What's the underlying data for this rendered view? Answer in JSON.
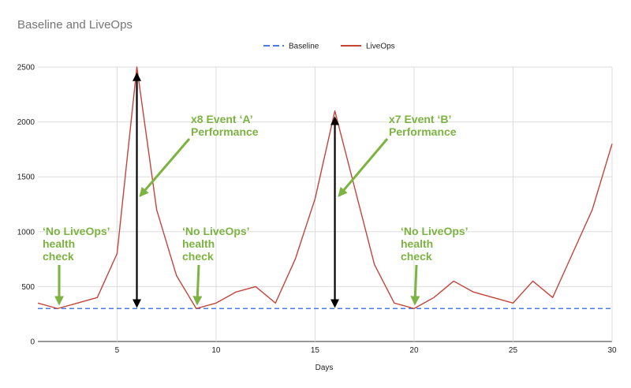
{
  "chart_data": {
    "type": "line",
    "title": "Baseline and LiveOps",
    "xlabel": "Days",
    "ylabel": "",
    "xlim": [
      1,
      30
    ],
    "ylim": [
      0,
      2500
    ],
    "x_ticks": [
      5,
      10,
      15,
      20,
      25,
      30
    ],
    "y_ticks": [
      0,
      500,
      1000,
      1500,
      2000,
      2500
    ],
    "grid": true,
    "legend_position": "top",
    "series": [
      {
        "name": "Baseline",
        "style": "dashed",
        "color": "#4a7de0",
        "x": [
          1,
          30
        ],
        "values": [
          300,
          300
        ]
      },
      {
        "name": "LiveOps",
        "style": "solid",
        "color": "#c5443a",
        "x": [
          1,
          2,
          3,
          4,
          5,
          6,
          7,
          8,
          9,
          10,
          11,
          12,
          13,
          14,
          15,
          16,
          17,
          18,
          19,
          20,
          21,
          22,
          23,
          24,
          25,
          26,
          27,
          28,
          29,
          30
        ],
        "values": [
          350,
          300,
          350,
          400,
          800,
          2500,
          1200,
          600,
          300,
          350,
          450,
          500,
          350,
          750,
          1300,
          2100,
          1400,
          700,
          350,
          300,
          400,
          550,
          450,
          400,
          350,
          550,
          400,
          800,
          1200,
          1800
        ]
      }
    ],
    "annotations": [
      {
        "id": "event-a",
        "lines": [
          "x8 Event ‘A’",
          "Performance"
        ],
        "arrow_from": [
          6,
          300
        ],
        "arrow_to": [
          6,
          2450
        ]
      },
      {
        "id": "event-b",
        "lines": [
          "x7 Event ‘B’",
          "Performance"
        ],
        "arrow_from": [
          16,
          300
        ],
        "arrow_to": [
          16,
          2050
        ]
      },
      {
        "id": "health-1",
        "lines": [
          "‘No LiveOps’",
          "health",
          "check"
        ],
        "target": [
          2,
          300
        ]
      },
      {
        "id": "health-2",
        "lines": [
          "‘No LiveOps’",
          "health",
          "check"
        ],
        "target": [
          9,
          300
        ]
      },
      {
        "id": "health-3",
        "lines": [
          "‘No LiveOps’",
          "health",
          "check"
        ],
        "target": [
          20,
          300
        ]
      }
    ],
    "annotation_color": "#7cb342"
  }
}
